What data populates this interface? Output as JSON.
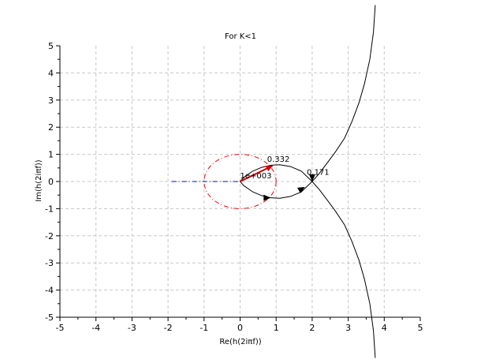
{
  "chart_data": {
    "type": "line",
    "title": "For K<1",
    "xlabel": "Re(h(2iπf))",
    "ylabel": "Im(h(2iπf))",
    "xlim": [
      -5,
      5
    ],
    "ylim": [
      -5,
      5
    ],
    "xticks": [
      "-5",
      "-4",
      "-3",
      "-2",
      "-1",
      "0",
      "1",
      "2",
      "3",
      "4",
      "5"
    ],
    "yticks": [
      "-5",
      "-4",
      "-3",
      "-2",
      "-1",
      "0",
      "1",
      "2",
      "3",
      "4",
      "5"
    ],
    "grid": true,
    "series": [
      {
        "style": "solid",
        "color": "#000000",
        "x": [
          3.75,
          3.7,
          3.6,
          3.45,
          3.3,
          3.1,
          2.9,
          2.65,
          2.4,
          2.2,
          2.0,
          1.7,
          1.4,
          1.1,
          0.85,
          0.6,
          0.35,
          0.1,
          0.0
        ],
        "y": [
          6.5,
          5.5,
          4.5,
          3.6,
          2.9,
          2.2,
          1.6,
          1.1,
          0.65,
          0.3,
          0.0,
          0.38,
          0.55,
          0.62,
          0.6,
          0.52,
          0.38,
          0.15,
          0.0
        ]
      },
      {
        "style": "solid",
        "color": "#000000",
        "x": [
          0.0,
          0.1,
          0.35,
          0.6,
          0.85,
          1.1,
          1.4,
          1.7,
          2.0,
          2.2,
          2.4,
          2.65,
          2.9,
          3.1,
          3.3,
          3.45,
          3.6,
          3.7,
          3.75
        ],
        "y": [
          0.0,
          -0.15,
          -0.38,
          -0.52,
          -0.6,
          -0.62,
          -0.55,
          -0.38,
          0.0,
          -0.3,
          -0.65,
          -1.1,
          -1.6,
          -2.2,
          -2.9,
          -3.6,
          -4.5,
          -5.5,
          -6.5
        ]
      },
      {
        "style": "dash-dot",
        "color": "#ff0000",
        "shape": "unit-circle"
      },
      {
        "style": "dash-dot",
        "color": "#0000ff",
        "x": [
          -1.9,
          0.0
        ],
        "y": [
          0.0,
          0.0
        ]
      }
    ],
    "arrows_on_curve": [
      {
        "x": 0.85,
        "y": -0.6,
        "direction": "right"
      },
      {
        "x": 1.8,
        "y": -0.2,
        "direction": "up-right"
      },
      {
        "x": 2.0,
        "y": 0.0,
        "direction": "down"
      }
    ],
    "phase_vector": {
      "from": [
        0.0,
        0.0
      ],
      "to": [
        0.9,
        0.58
      ],
      "color": "#cc0000"
    },
    "annotations": [
      {
        "text": "0.332",
        "x": 0.75,
        "y": 0.72
      },
      {
        "text": "0.171",
        "x": 1.85,
        "y": 0.25
      },
      {
        "text": "1e+003",
        "x": 0.0,
        "y": 0.12
      }
    ]
  }
}
